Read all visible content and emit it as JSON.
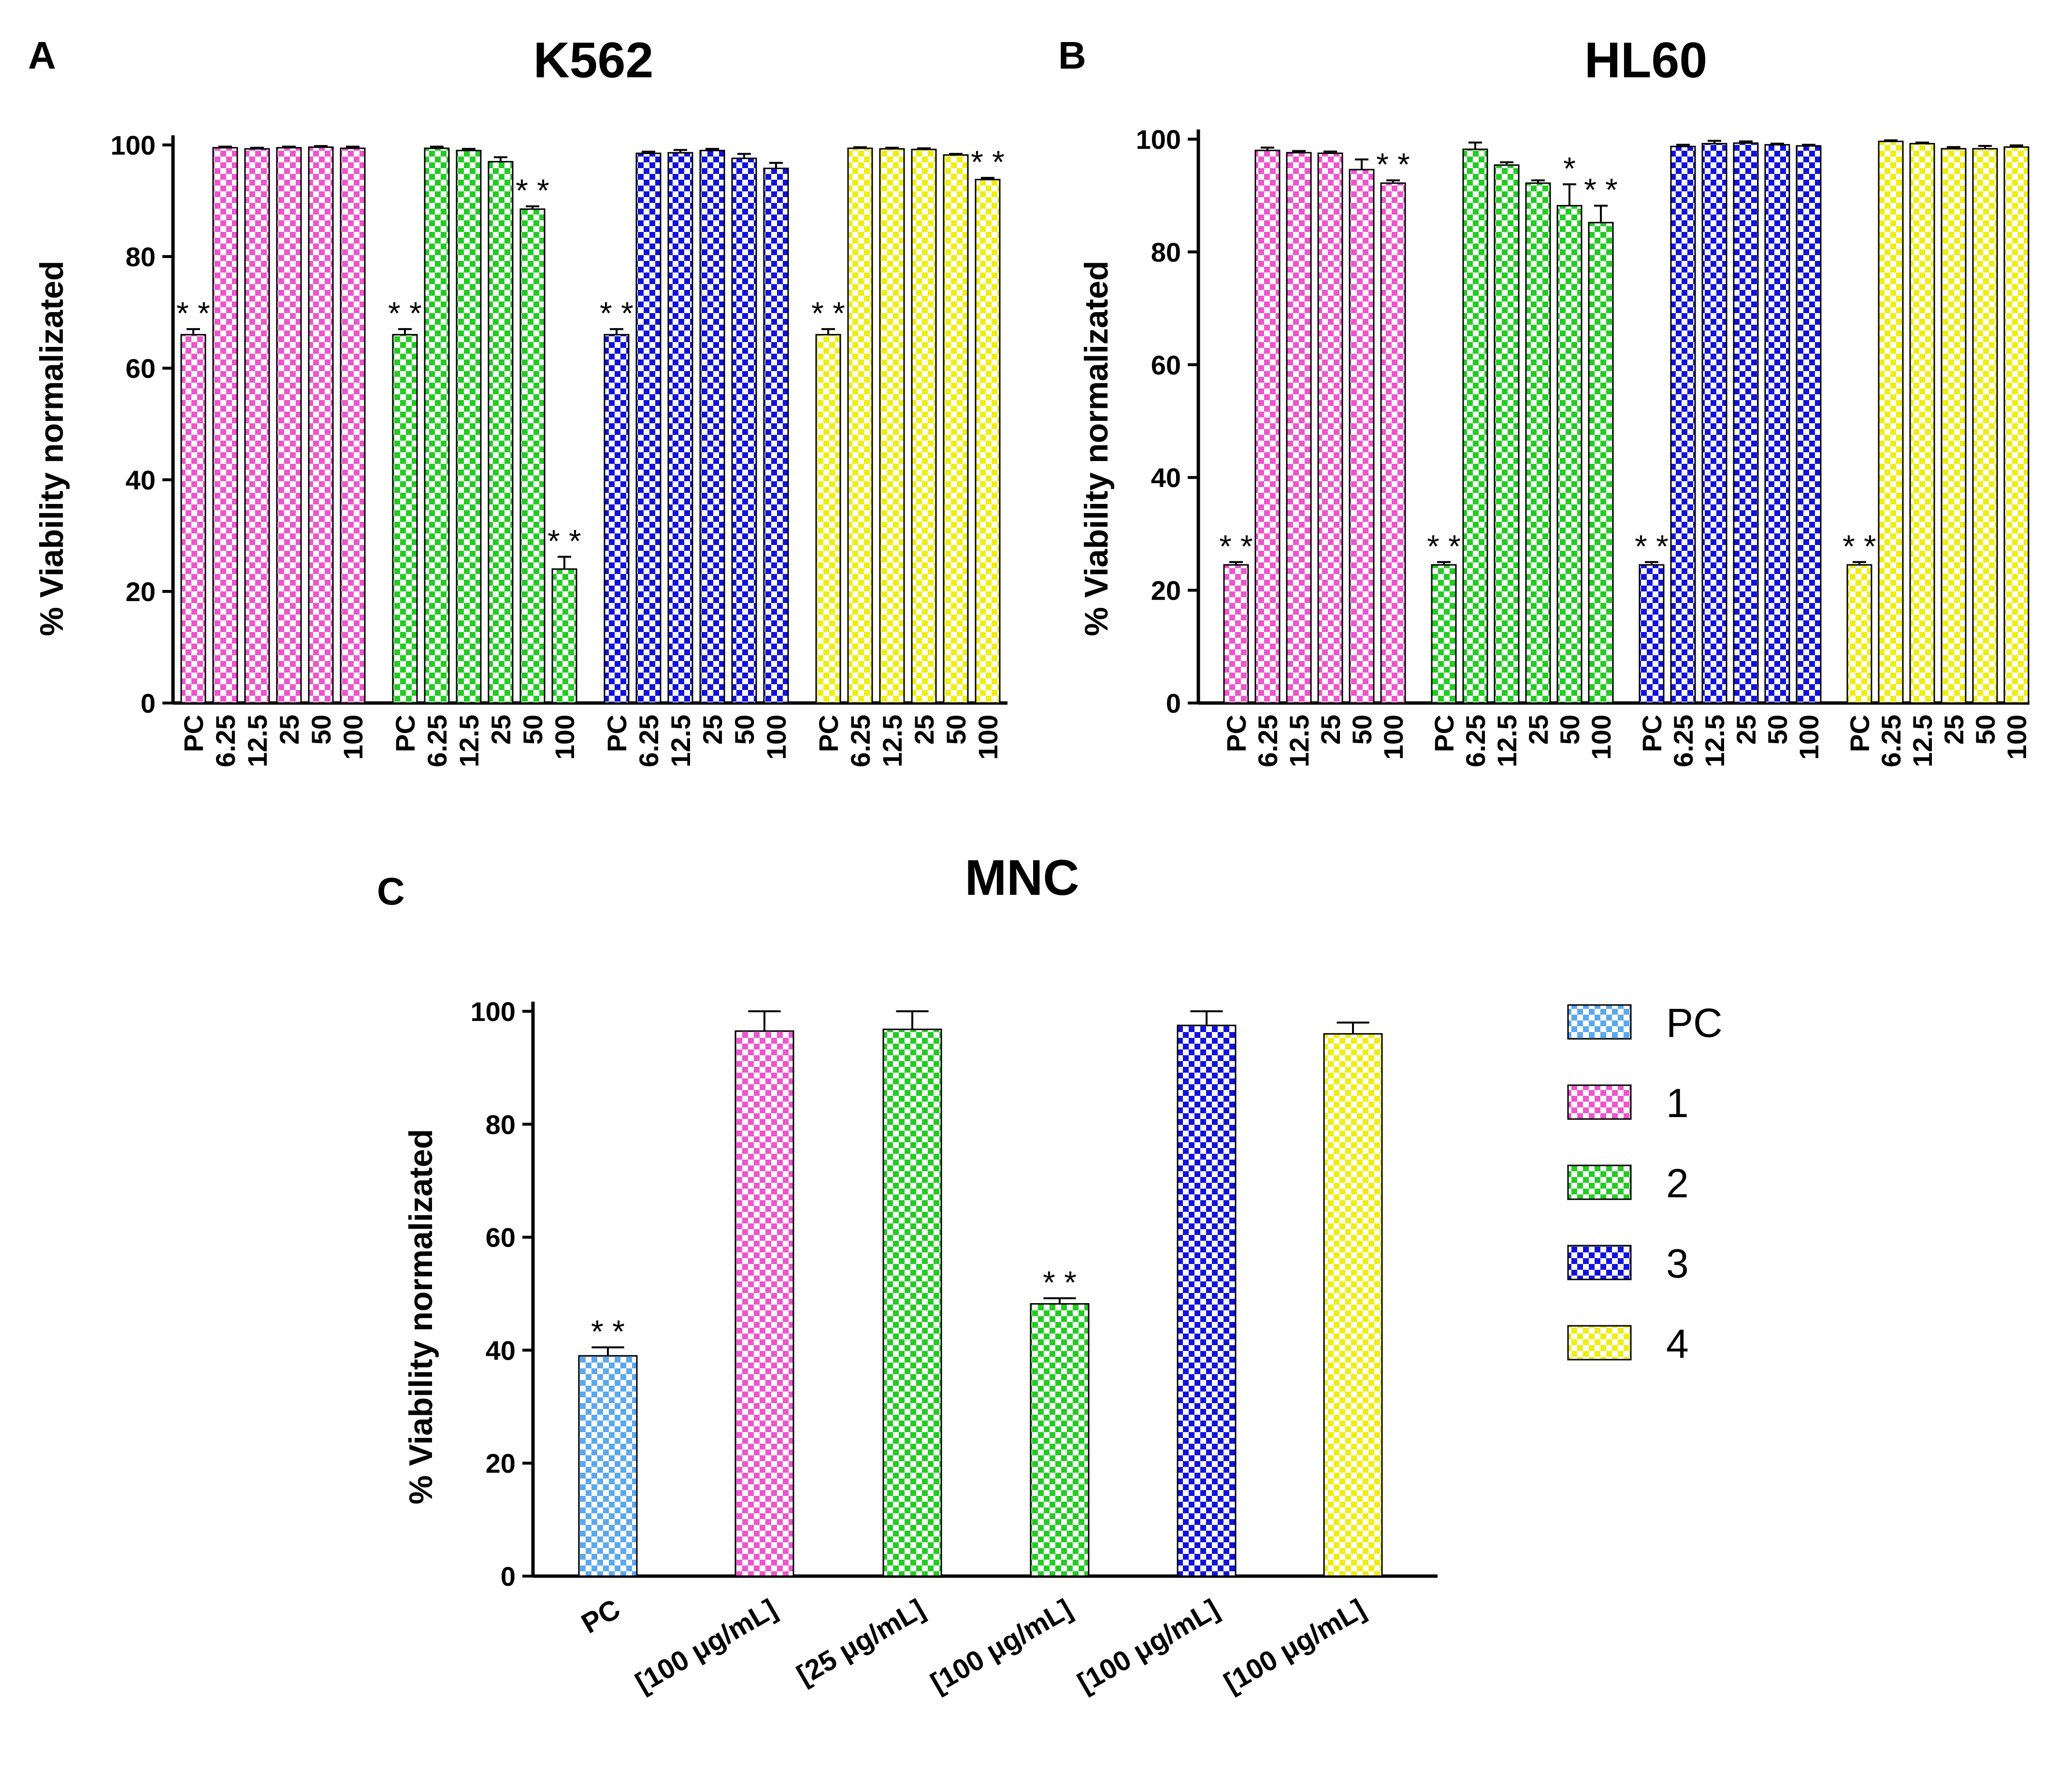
{
  "colors": {
    "PC": "#5aa8ee",
    "1": "#ee55cc",
    "2": "#22cc22",
    "3": "#1111dd",
    "4": "#eeee11"
  },
  "legend": [
    {
      "key": "PC",
      "label": "PC"
    },
    {
      "key": "1",
      "label": "1"
    },
    {
      "key": "2",
      "label": "2"
    },
    {
      "key": "3",
      "label": "3"
    },
    {
      "key": "4",
      "label": "4"
    }
  ],
  "chart_data": [
    {
      "panel": "A",
      "type": "bar",
      "title": "K562",
      "ylabel": "% Viability normalizated",
      "ylim": [
        0,
        100
      ],
      "yticks": [
        0,
        20,
        40,
        60,
        80,
        100
      ],
      "groups": [
        {
          "name": "1",
          "color_key": "1",
          "categories": [
            "PC",
            "6.25",
            "12.5",
            "25",
            "50",
            "100"
          ],
          "values": [
            66,
            99.5,
            99.3,
            99.5,
            99.6,
            99.4
          ],
          "errors": [
            1,
            0.2,
            0.2,
            0.2,
            0.2,
            0.3
          ],
          "significance": [
            "**",
            "",
            "",
            "",
            "",
            ""
          ],
          "bar_colors": [
            "1",
            "1",
            "1",
            "1",
            "1",
            "1"
          ]
        },
        {
          "name": "2",
          "color_key": "2",
          "categories": [
            "PC",
            "6.25",
            "12.5",
            "25",
            "50",
            "100"
          ],
          "values": [
            66,
            99.4,
            99,
            97,
            88.5,
            24
          ],
          "errors": [
            1,
            0.3,
            0.3,
            0.8,
            0.5,
            2.2
          ],
          "significance": [
            "**",
            "",
            "",
            "",
            "**",
            "**"
          ],
          "bar_colors": [
            "2",
            "2",
            "2",
            "2",
            "2",
            "2"
          ]
        },
        {
          "name": "3",
          "color_key": "3",
          "categories": [
            "PC",
            "6.25",
            "12.5",
            "25",
            "50",
            "100"
          ],
          "values": [
            66,
            98.5,
            98.6,
            99,
            97.6,
            95.8
          ],
          "errors": [
            1,
            0.3,
            0.5,
            0.3,
            0.8,
            1
          ],
          "significance": [
            "**",
            "",
            "",
            "",
            "",
            ""
          ],
          "bar_colors": [
            "3",
            "3",
            "3",
            "3",
            "3",
            "3"
          ]
        },
        {
          "name": "4",
          "color_key": "4",
          "categories": [
            "PC",
            "6.25",
            "12.5",
            "25",
            "50",
            "100"
          ],
          "values": [
            66,
            99.4,
            99.3,
            99.2,
            98.2,
            93.8
          ],
          "errors": [
            1,
            0.2,
            0.2,
            0.2,
            0.2,
            0.3
          ],
          "significance": [
            "**",
            "",
            "",
            "",
            "",
            "**"
          ],
          "bar_colors": [
            "4",
            "4",
            "4",
            "4",
            "4",
            "4"
          ]
        }
      ]
    },
    {
      "panel": "B",
      "type": "bar",
      "title": "HL60",
      "ylabel": "% Viability normalizated",
      "ylim": [
        0,
        100
      ],
      "yticks": [
        0,
        20,
        40,
        60,
        80,
        100
      ],
      "groups": [
        {
          "name": "1",
          "color_key": "1",
          "categories": [
            "PC",
            "6.25",
            "12.5",
            "25",
            "50",
            "100"
          ],
          "values": [
            24.5,
            98,
            97.6,
            97.5,
            94.6,
            92.2
          ],
          "errors": [
            0.5,
            0.5,
            0.3,
            0.3,
            1.8,
            0.5
          ],
          "significance": [
            "**",
            "",
            "",
            "",
            "",
            "**"
          ],
          "bar_colors": [
            "1",
            "1",
            "1",
            "1",
            "1",
            "1"
          ]
        },
        {
          "name": "2",
          "color_key": "2",
          "categories": [
            "PC",
            "6.25",
            "12.5",
            "25",
            "50",
            "100"
          ],
          "values": [
            24.5,
            98.2,
            95.4,
            92.2,
            88.2,
            85.2
          ],
          "errors": [
            0.5,
            1.2,
            0.5,
            0.5,
            3.8,
            3
          ],
          "significance": [
            "**",
            "",
            "",
            "",
            "*",
            "**"
          ],
          "bar_colors": [
            "2",
            "2",
            "2",
            "2",
            "2",
            "2"
          ]
        },
        {
          "name": "3",
          "color_key": "3",
          "categories": [
            "PC",
            "6.25",
            "12.5",
            "25",
            "50",
            "100"
          ],
          "values": [
            24.5,
            98.7,
            99.2,
            99.3,
            99,
            98.8
          ],
          "errors": [
            0.5,
            0.3,
            0.5,
            0.3,
            0.2,
            0.2
          ],
          "significance": [
            "**",
            "",
            "",
            "",
            "",
            ""
          ],
          "bar_colors": [
            "3",
            "3",
            "3",
            "3",
            "3",
            "3"
          ]
        },
        {
          "name": "4",
          "color_key": "4",
          "categories": [
            "PC",
            "6.25",
            "12.5",
            "25",
            "50",
            "100"
          ],
          "values": [
            24.5,
            99.6,
            99.2,
            98.3,
            98.3,
            98.6
          ],
          "errors": [
            0.5,
            0.2,
            0.2,
            0.3,
            0.5,
            0.3
          ],
          "significance": [
            "**",
            "",
            "",
            "",
            "",
            ""
          ],
          "bar_colors": [
            "4",
            "4",
            "4",
            "4",
            "4",
            "4"
          ]
        }
      ]
    },
    {
      "panel": "C",
      "type": "bar",
      "title": "MNC",
      "ylabel": "% Viability normalizated",
      "ylim": [
        0,
        100
      ],
      "yticks": [
        0,
        20,
        40,
        60,
        80,
        100
      ],
      "categories": [
        "PC",
        "[100 μg/mL]",
        "[25 μg/mL]",
        "[100 μg/mL]",
        "[100 μg/mL]",
        "[100 μg/mL]"
      ],
      "values": [
        39,
        96.5,
        96.8,
        48.2,
        97.5,
        96
      ],
      "errors": [
        1.5,
        3.5,
        3.2,
        1,
        2.5,
        2
      ],
      "significance": [
        "**",
        "",
        "",
        "**",
        "",
        ""
      ],
      "bar_colors": [
        "PC",
        "1",
        "2",
        "2",
        "3",
        "4"
      ]
    }
  ]
}
